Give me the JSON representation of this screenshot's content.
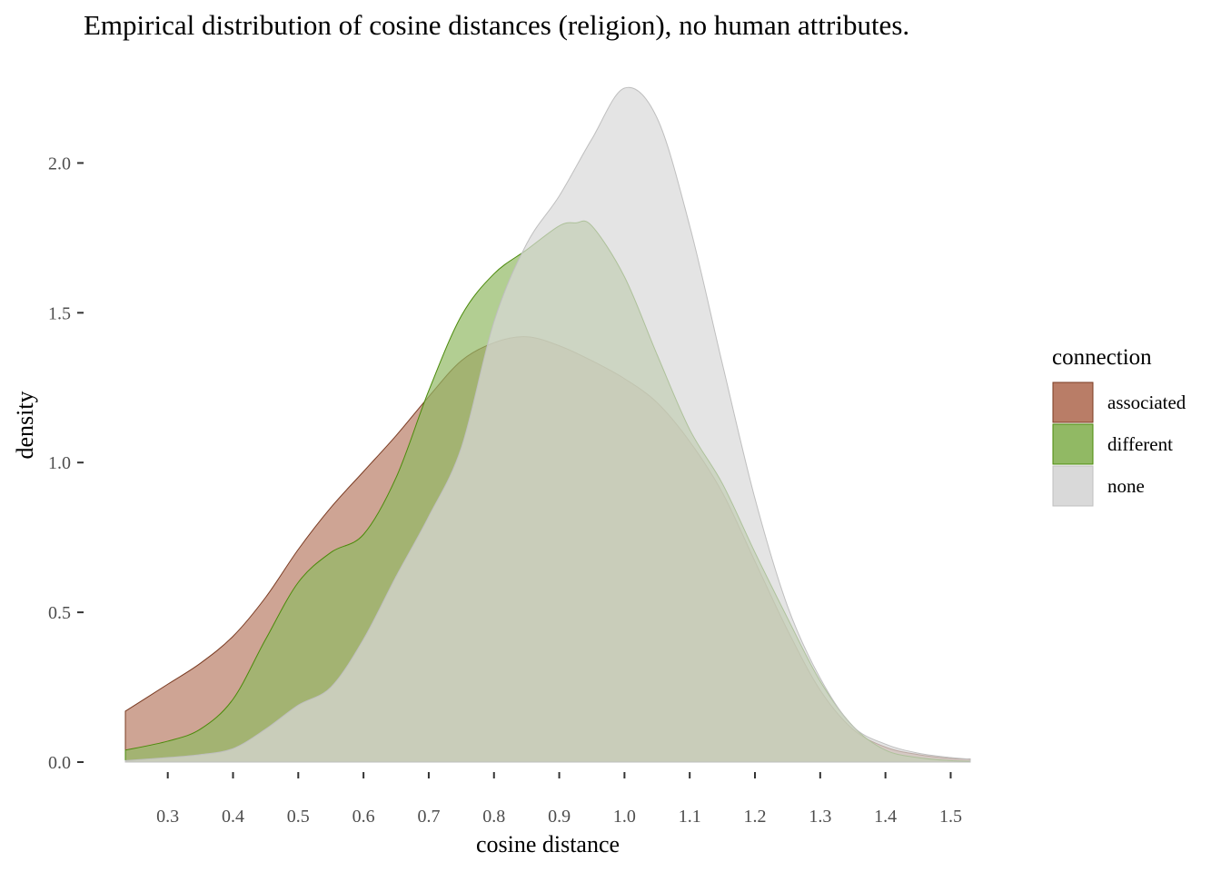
{
  "chart_data": {
    "type": "area",
    "subtype": "density",
    "title": "Empirical distribution of cosine distances (religion), no human attributes.",
    "xlabel": "cosine distance",
    "ylabel": "density",
    "xlim": [
      0.235,
      1.53
    ],
    "ylim": [
      0,
      2.25
    ],
    "x_ticks": [
      0.3,
      0.4,
      0.5,
      0.6,
      0.7,
      0.8,
      0.9,
      1.0,
      1.1,
      1.2,
      1.3,
      1.4,
      1.5
    ],
    "x_tick_labels": [
      "0.3",
      "0.4",
      "0.5",
      "0.6",
      "0.7",
      "0.8",
      "0.9",
      "1.0",
      "1.1",
      "1.2",
      "1.3",
      "1.4",
      "1.5"
    ],
    "y_ticks": [
      0.0,
      0.5,
      1.0,
      1.5,
      2.0
    ],
    "y_tick_labels": [
      "0.0",
      "0.5",
      "1.0",
      "1.5",
      "2.0"
    ],
    "grid": false,
    "legend": {
      "title": "connection",
      "position": "right"
    },
    "series": [
      {
        "name": "associated",
        "fill": "#b97d67",
        "stroke": "#7a3b22",
        "x": [
          0.235,
          0.3,
          0.35,
          0.4,
          0.45,
          0.5,
          0.55,
          0.6,
          0.65,
          0.7,
          0.75,
          0.8,
          0.85,
          0.9,
          0.95,
          1.0,
          1.05,
          1.1,
          1.15,
          1.2,
          1.25,
          1.3,
          1.35,
          1.4,
          1.45,
          1.5,
          1.53
        ],
        "y": [
          0.17,
          0.26,
          0.33,
          0.42,
          0.55,
          0.71,
          0.85,
          0.97,
          1.09,
          1.22,
          1.34,
          1.4,
          1.42,
          1.39,
          1.34,
          1.28,
          1.2,
          1.07,
          0.9,
          0.67,
          0.44,
          0.24,
          0.11,
          0.05,
          0.025,
          0.012,
          0.01
        ]
      },
      {
        "name": "different",
        "fill": "#91b964",
        "stroke": "#4a8a0a",
        "x": [
          0.235,
          0.3,
          0.35,
          0.4,
          0.45,
          0.5,
          0.55,
          0.6,
          0.65,
          0.7,
          0.75,
          0.8,
          0.85,
          0.9,
          0.925,
          0.95,
          1.0,
          1.05,
          1.1,
          1.15,
          1.2,
          1.25,
          1.3,
          1.35,
          1.4,
          1.45,
          1.5,
          1.53
        ],
        "y": [
          0.04,
          0.07,
          0.11,
          0.21,
          0.41,
          0.6,
          0.7,
          0.76,
          0.95,
          1.24,
          1.49,
          1.63,
          1.71,
          1.79,
          1.8,
          1.79,
          1.62,
          1.36,
          1.11,
          0.93,
          0.7,
          0.48,
          0.27,
          0.12,
          0.04,
          0.015,
          0.005,
          0.003
        ]
      },
      {
        "name": "none",
        "fill": "#d9d9d9",
        "stroke": "#bfbfbf",
        "x": [
          0.235,
          0.3,
          0.35,
          0.4,
          0.45,
          0.5,
          0.55,
          0.6,
          0.65,
          0.7,
          0.75,
          0.8,
          0.85,
          0.9,
          0.95,
          1.0,
          1.05,
          1.1,
          1.15,
          1.2,
          1.25,
          1.3,
          1.35,
          1.4,
          1.45,
          1.5,
          1.53
        ],
        "y": [
          0.005,
          0.015,
          0.025,
          0.045,
          0.11,
          0.19,
          0.25,
          0.41,
          0.62,
          0.82,
          1.05,
          1.47,
          1.73,
          1.89,
          2.08,
          2.25,
          2.15,
          1.79,
          1.33,
          0.88,
          0.52,
          0.28,
          0.12,
          0.06,
          0.03,
          0.015,
          0.01
        ]
      }
    ]
  }
}
